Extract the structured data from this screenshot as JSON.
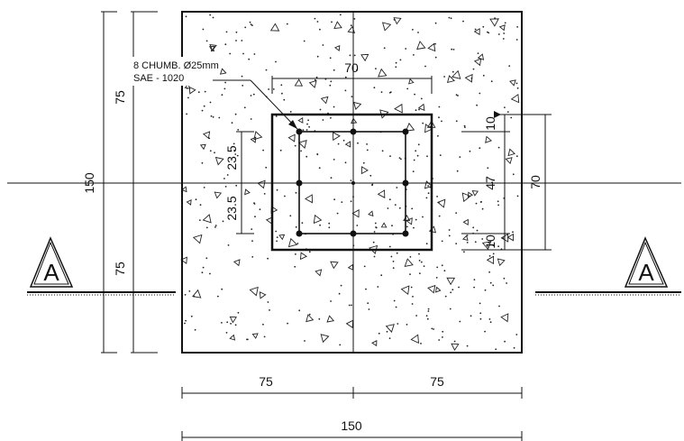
{
  "labels": {
    "rebar_note_line1": "8 CHUMB. Ø25mm",
    "rebar_note_line2": "SAE - 1020",
    "section_marker_left": "A",
    "section_marker_right": "A"
  },
  "dimensions": {
    "top_half": "75",
    "bottom_half": "75",
    "total_vertical": "150",
    "bottom_left": "75",
    "bottom_right": "75",
    "bottom_total": "150",
    "plate_width": "70",
    "plate_height": "70",
    "bolt_spacing_upper": "23.5",
    "bolt_spacing_lower": "23.5",
    "edge_top": "10",
    "edge_bottom": "10",
    "bolt_center_spacing": "47"
  }
}
